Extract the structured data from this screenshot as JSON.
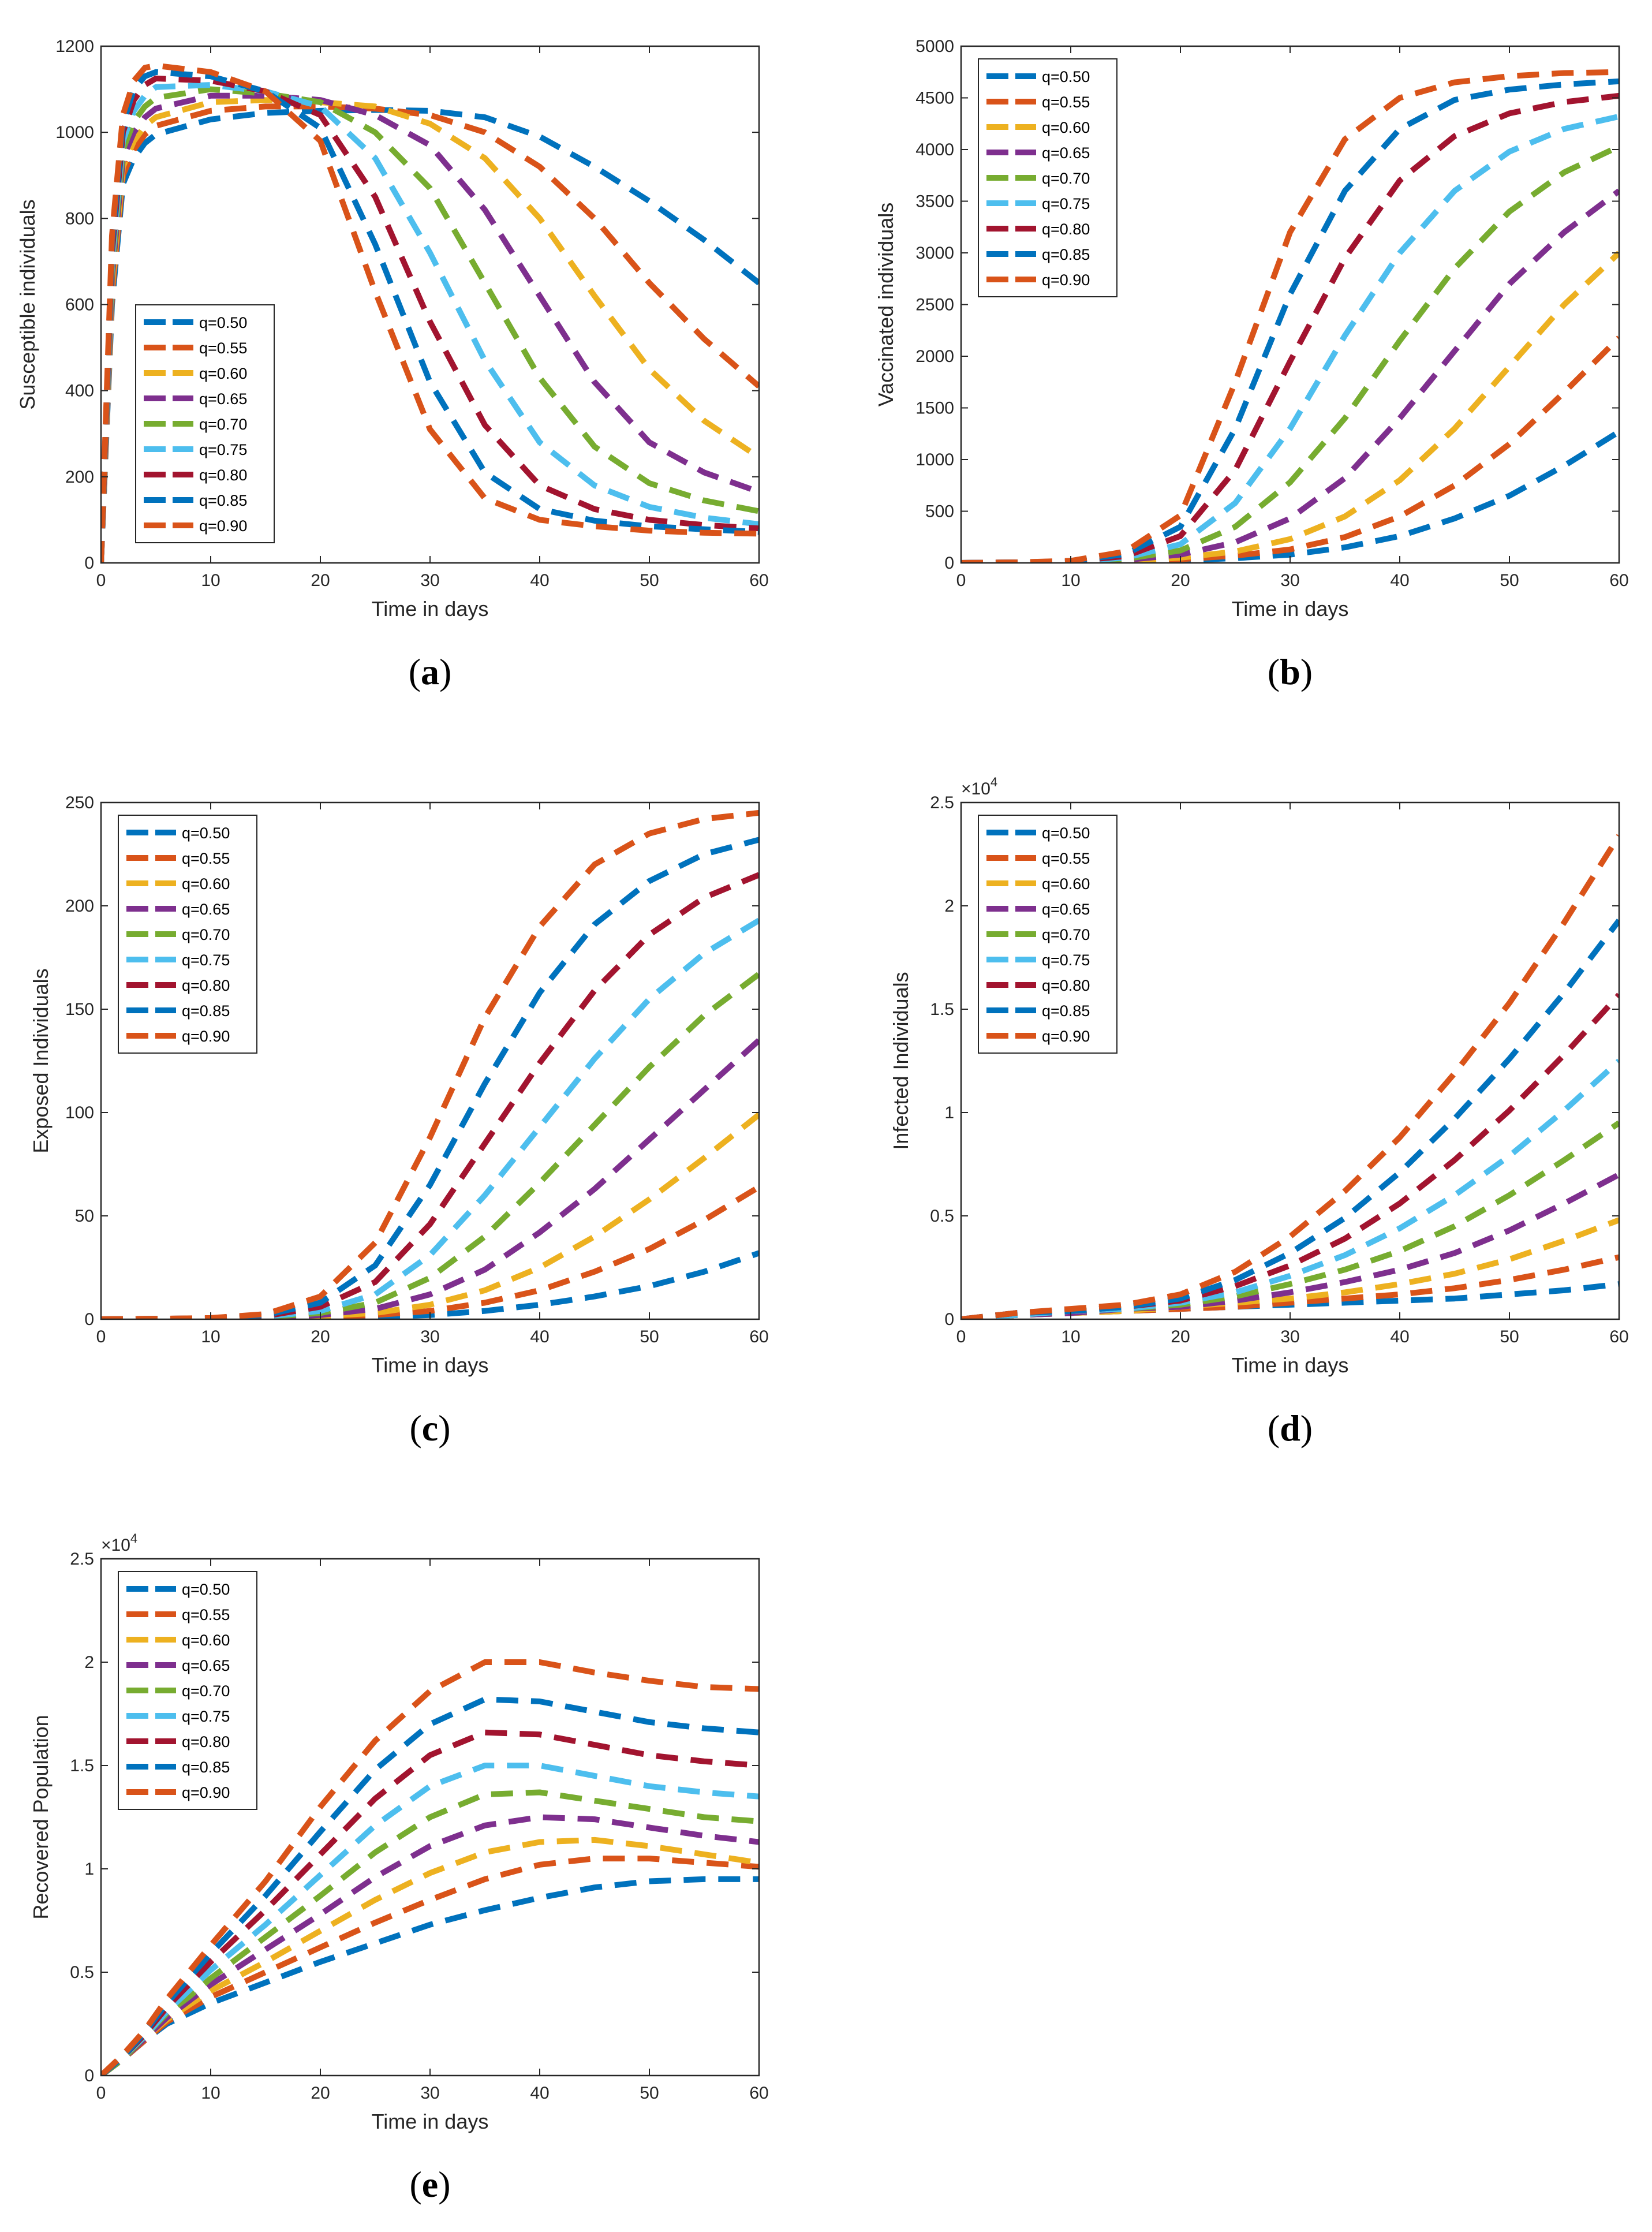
{
  "figure": {
    "colors": [
      "#0072BD",
      "#D95319",
      "#EDB120",
      "#7E2F8E",
      "#77AC30",
      "#4DBEEE",
      "#A2142F",
      "#0072BD",
      "#D95319"
    ]
  },
  "chart_data": [
    {
      "id": "a",
      "type": "line",
      "caption": "a",
      "xlabel": "Time in days",
      "ylabel": "Susceptible individuals",
      "xlim": [
        0,
        60
      ],
      "ylim": [
        0,
        1200
      ],
      "xticks": [
        "0",
        "10",
        "20",
        "30",
        "40",
        "50",
        "60"
      ],
      "yticks": [
        "0",
        "200",
        "400",
        "600",
        "800",
        "1000",
        "1200"
      ],
      "exponent": "",
      "legend_position": "bottom-left",
      "x": [
        0,
        1,
        2,
        3,
        4,
        5,
        10,
        15,
        20,
        25,
        30,
        35,
        40,
        45,
        50,
        55,
        60
      ],
      "series": [
        {
          "name": "q=0.50",
          "values": [
            0,
            600,
            880,
            940,
            975,
            995,
            1030,
            1045,
            1050,
            1052,
            1050,
            1035,
            990,
            920,
            840,
            750,
            650
          ]
        },
        {
          "name": "q=0.55",
          "values": [
            0,
            620,
            900,
            960,
            995,
            1015,
            1050,
            1060,
            1060,
            1055,
            1040,
            1000,
            920,
            800,
            650,
            520,
            410
          ]
        },
        {
          "name": "q=0.60",
          "values": [
            0,
            640,
            920,
            980,
            1015,
            1035,
            1070,
            1075,
            1070,
            1060,
            1020,
            940,
            800,
            620,
            450,
            330,
            245
          ]
        },
        {
          "name": "q=0.65",
          "values": [
            0,
            660,
            940,
            1000,
            1035,
            1055,
            1085,
            1085,
            1075,
            1040,
            970,
            820,
            620,
            420,
            280,
            210,
            165
          ]
        },
        {
          "name": "q=0.70",
          "values": [
            0,
            680,
            960,
            1025,
            1060,
            1080,
            1100,
            1090,
            1070,
            1000,
            870,
            650,
            430,
            270,
            185,
            145,
            120
          ]
        },
        {
          "name": "q=0.75",
          "values": [
            0,
            700,
            980,
            1050,
            1085,
            1105,
            1110,
            1095,
            1060,
            940,
            720,
            470,
            280,
            180,
            130,
            105,
            90
          ]
        },
        {
          "name": "q=0.80",
          "values": [
            0,
            720,
            1000,
            1075,
            1110,
            1125,
            1120,
            1095,
            1040,
            850,
            560,
            320,
            180,
            125,
            100,
            88,
            80
          ]
        },
        {
          "name": "q=0.85",
          "values": [
            0,
            740,
            1020,
            1100,
            1130,
            1140,
            1130,
            1095,
            1010,
            740,
            420,
            210,
            125,
            98,
            85,
            78,
            72
          ]
        },
        {
          "name": "q=0.90",
          "values": [
            0,
            760,
            1040,
            1120,
            1150,
            1155,
            1140,
            1095,
            980,
            630,
            310,
            150,
            100,
            85,
            75,
            70,
            68
          ]
        }
      ]
    },
    {
      "id": "b",
      "type": "line",
      "caption": "b",
      "xlabel": "Time in days",
      "ylabel": "Vaccinated individuals",
      "xlim": [
        0,
        60
      ],
      "ylim": [
        0,
        5000
      ],
      "xticks": [
        "0",
        "10",
        "20",
        "30",
        "40",
        "50",
        "60"
      ],
      "yticks": [
        "0",
        "500",
        "1000",
        "1500",
        "2000",
        "2500",
        "3000",
        "3500",
        "4000",
        "4500",
        "5000"
      ],
      "exponent": "",
      "legend_position": "top-left",
      "x": [
        0,
        5,
        10,
        15,
        20,
        25,
        30,
        35,
        40,
        45,
        50,
        55,
        60
      ],
      "series": [
        {
          "name": "q=0.50",
          "values": [
            0,
            3,
            6,
            12,
            25,
            45,
            80,
            150,
            260,
            430,
            650,
            940,
            1270
          ]
        },
        {
          "name": "q=0.55",
          "values": [
            0,
            3,
            7,
            15,
            35,
            70,
            130,
            250,
            450,
            750,
            1150,
            1650,
            2180
          ]
        },
        {
          "name": "q=0.60",
          "values": [
            0,
            3,
            8,
            20,
            50,
            110,
            230,
            450,
            800,
            1300,
            1900,
            2500,
            3000
          ]
        },
        {
          "name": "q=0.65",
          "values": [
            0,
            4,
            10,
            28,
            80,
            200,
            430,
            820,
            1400,
            2050,
            2700,
            3200,
            3600
          ]
        },
        {
          "name": "q=0.70",
          "values": [
            0,
            4,
            12,
            38,
            120,
            350,
            780,
            1400,
            2150,
            2850,
            3400,
            3780,
            4030
          ]
        },
        {
          "name": "q=0.75",
          "values": [
            0,
            4,
            14,
            50,
            180,
            580,
            1300,
            2200,
            3000,
            3600,
            3980,
            4200,
            4320
          ]
        },
        {
          "name": "q=0.80",
          "values": [
            0,
            5,
            16,
            65,
            260,
            900,
            1950,
            2950,
            3700,
            4130,
            4350,
            4460,
            4520
          ]
        },
        {
          "name": "q=0.85",
          "values": [
            0,
            5,
            18,
            85,
            350,
            1300,
            2600,
            3600,
            4200,
            4480,
            4580,
            4630,
            4660
          ]
        },
        {
          "name": "q=0.90",
          "values": [
            0,
            5,
            20,
            110,
            460,
            1750,
            3200,
            4100,
            4500,
            4650,
            4710,
            4740,
            4750
          ]
        }
      ]
    },
    {
      "id": "c",
      "type": "line",
      "caption": "c",
      "xlabel": "Time in days",
      "ylabel": "Exposed Individuals",
      "xlim": [
        0,
        60
      ],
      "ylim": [
        0,
        250
      ],
      "xticks": [
        "0",
        "10",
        "20",
        "30",
        "40",
        "50",
        "60"
      ],
      "yticks": [
        "0",
        "50",
        "100",
        "150",
        "200",
        "250"
      ],
      "exponent": "",
      "legend_position": "top-left",
      "x": [
        0,
        5,
        10,
        15,
        20,
        25,
        30,
        35,
        40,
        45,
        50,
        55,
        60
      ],
      "series": [
        {
          "name": "q=0.50",
          "values": [
            0,
            0.2,
            0.3,
            0.5,
            0.8,
            1.2,
            2,
            4,
            7,
            11,
            16,
            23,
            32
          ]
        },
        {
          "name": "q=0.55",
          "values": [
            0,
            0.2,
            0.3,
            0.6,
            1,
            2,
            4,
            8,
            14,
            23,
            34,
            48,
            64
          ]
        },
        {
          "name": "q=0.60",
          "values": [
            0,
            0.2,
            0.3,
            0.7,
            1.5,
            3,
            7,
            14,
            25,
            40,
            58,
            78,
            99
          ]
        },
        {
          "name": "q=0.65",
          "values": [
            0,
            0.2,
            0.4,
            0.8,
            2,
            5,
            12,
            24,
            42,
            63,
            87,
            111,
            135
          ]
        },
        {
          "name": "q=0.70",
          "values": [
            0,
            0.2,
            0.4,
            1,
            3,
            8,
            20,
            40,
            66,
            94,
            122,
            147,
            167
          ]
        },
        {
          "name": "q=0.75",
          "values": [
            0,
            0.2,
            0.4,
            1.2,
            4,
            12,
            31,
            60,
            93,
            126,
            155,
            177,
            193
          ]
        },
        {
          "name": "q=0.80",
          "values": [
            0,
            0.2,
            0.5,
            1.5,
            6,
            18,
            46,
            85,
            124,
            159,
            186,
            204,
            215
          ]
        },
        {
          "name": "q=0.85",
          "values": [
            0,
            0.2,
            0.5,
            2,
            8,
            26,
            65,
            114,
            158,
            191,
            212,
            225,
            232
          ]
        },
        {
          "name": "q=0.90",
          "values": [
            0,
            0.2,
            0.6,
            2.5,
            11,
            37,
            88,
            146,
            190,
            220,
            235,
            242,
            245
          ]
        }
      ]
    },
    {
      "id": "d",
      "type": "line",
      "caption": "d",
      "xlabel": "Time in days",
      "ylabel": "Infected Individuals",
      "xlim": [
        0,
        60
      ],
      "ylim": [
        0,
        2.5
      ],
      "xticks": [
        "0",
        "10",
        "20",
        "30",
        "40",
        "50",
        "60"
      ],
      "yticks": [
        "0",
        "0.5",
        "1",
        "1.5",
        "2",
        "2.5"
      ],
      "exponent": "×10",
      "exponent_power": "4",
      "legend_position": "top-left",
      "x": [
        0,
        5,
        10,
        15,
        20,
        25,
        30,
        35,
        40,
        45,
        50,
        55,
        60
      ],
      "series": [
        {
          "name": "q=0.50",
          "values": [
            0,
            0.02,
            0.03,
            0.04,
            0.05,
            0.06,
            0.07,
            0.08,
            0.09,
            0.1,
            0.12,
            0.14,
            0.17
          ]
        },
        {
          "name": "q=0.55",
          "values": [
            0,
            0.02,
            0.03,
            0.04,
            0.05,
            0.06,
            0.08,
            0.1,
            0.12,
            0.15,
            0.19,
            0.24,
            0.3
          ]
        },
        {
          "name": "q=0.60",
          "values": [
            0,
            0.02,
            0.03,
            0.04,
            0.06,
            0.08,
            0.1,
            0.13,
            0.17,
            0.22,
            0.29,
            0.38,
            0.48
          ]
        },
        {
          "name": "q=0.65",
          "values": [
            0,
            0.02,
            0.03,
            0.05,
            0.06,
            0.09,
            0.13,
            0.18,
            0.24,
            0.32,
            0.43,
            0.56,
            0.7
          ]
        },
        {
          "name": "q=0.70",
          "values": [
            0,
            0.02,
            0.04,
            0.05,
            0.07,
            0.11,
            0.17,
            0.24,
            0.33,
            0.45,
            0.6,
            0.77,
            0.95
          ]
        },
        {
          "name": "q=0.75",
          "values": [
            0,
            0.02,
            0.04,
            0.05,
            0.08,
            0.13,
            0.21,
            0.31,
            0.44,
            0.6,
            0.79,
            1.01,
            1.25
          ]
        },
        {
          "name": "q=0.80",
          "values": [
            0,
            0.03,
            0.04,
            0.06,
            0.09,
            0.16,
            0.26,
            0.39,
            0.56,
            0.77,
            1.01,
            1.28,
            1.57
          ]
        },
        {
          "name": "q=0.85",
          "values": [
            0,
            0.03,
            0.04,
            0.06,
            0.1,
            0.19,
            0.32,
            0.49,
            0.71,
            0.97,
            1.26,
            1.58,
            1.93
          ]
        },
        {
          "name": "q=0.90",
          "values": [
            0,
            0.03,
            0.05,
            0.07,
            0.12,
            0.23,
            0.4,
            0.62,
            0.88,
            1.19,
            1.53,
            1.92,
            2.34
          ]
        }
      ]
    },
    {
      "id": "e",
      "type": "line",
      "caption": "e",
      "xlabel": "Time in days",
      "ylabel": "Recovered  Population",
      "xlim": [
        0,
        60
      ],
      "ylim": [
        0,
        2.5
      ],
      "xticks": [
        "0",
        "10",
        "20",
        "30",
        "40",
        "50",
        "60"
      ],
      "yticks": [
        "0",
        "0.5",
        "1",
        "1.5",
        "2",
        "2.5"
      ],
      "exponent": "×10",
      "exponent_power": "4",
      "legend_position": "top-left",
      "x": [
        0,
        2,
        4,
        6,
        8,
        10,
        15,
        20,
        25,
        30,
        35,
        40,
        45,
        50,
        55,
        60
      ],
      "series": [
        {
          "name": "q=0.50",
          "values": [
            0,
            0.08,
            0.17,
            0.25,
            0.3,
            0.35,
            0.45,
            0.55,
            0.64,
            0.73,
            0.8,
            0.86,
            0.91,
            0.94,
            0.95,
            0.95
          ]
        },
        {
          "name": "q=0.55",
          "values": [
            0,
            0.08,
            0.17,
            0.26,
            0.32,
            0.38,
            0.5,
            0.62,
            0.74,
            0.85,
            0.95,
            1.02,
            1.05,
            1.05,
            1.03,
            1.01
          ]
        },
        {
          "name": "q=0.60",
          "values": [
            0,
            0.08,
            0.18,
            0.27,
            0.34,
            0.41,
            0.55,
            0.7,
            0.85,
            0.98,
            1.08,
            1.13,
            1.14,
            1.11,
            1.07,
            1.03
          ]
        },
        {
          "name": "q=0.65",
          "values": [
            0,
            0.08,
            0.18,
            0.28,
            0.36,
            0.44,
            0.61,
            0.78,
            0.96,
            1.11,
            1.21,
            1.25,
            1.24,
            1.2,
            1.16,
            1.13
          ]
        },
        {
          "name": "q=0.70",
          "values": [
            0,
            0.08,
            0.19,
            0.3,
            0.38,
            0.47,
            0.67,
            0.87,
            1.08,
            1.25,
            1.36,
            1.37,
            1.33,
            1.29,
            1.25,
            1.23
          ]
        },
        {
          "name": "q=0.75",
          "values": [
            0,
            0.09,
            0.19,
            0.31,
            0.41,
            0.51,
            0.73,
            0.97,
            1.21,
            1.4,
            1.5,
            1.5,
            1.45,
            1.4,
            1.37,
            1.35
          ]
        },
        {
          "name": "q=0.80",
          "values": [
            0,
            0.09,
            0.2,
            0.33,
            0.44,
            0.55,
            0.8,
            1.07,
            1.34,
            1.55,
            1.66,
            1.65,
            1.6,
            1.55,
            1.52,
            1.5
          ]
        },
        {
          "name": "q=0.85",
          "values": [
            0,
            0.09,
            0.21,
            0.35,
            0.47,
            0.59,
            0.87,
            1.18,
            1.48,
            1.7,
            1.82,
            1.81,
            1.76,
            1.71,
            1.68,
            1.66
          ]
        },
        {
          "name": "q=0.90",
          "values": [
            0,
            0.1,
            0.22,
            0.37,
            0.5,
            0.63,
            0.94,
            1.3,
            1.62,
            1.86,
            2.0,
            2.0,
            1.95,
            1.91,
            1.88,
            1.87
          ]
        }
      ]
    }
  ]
}
